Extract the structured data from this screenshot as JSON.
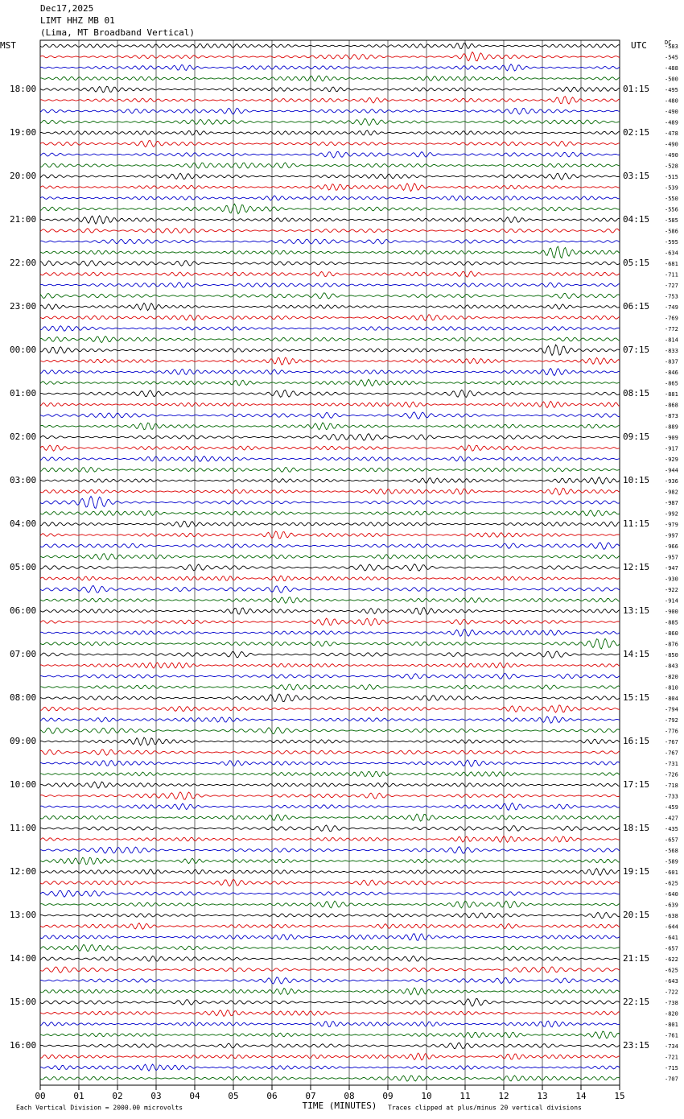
{
  "header": {
    "date": "Dec17,2025",
    "station": "LIMT HHZ MB 01",
    "location": "(Lima, MT Broadband Vertical)"
  },
  "left_axis": {
    "title": "MST",
    "labels": [
      "18:00",
      "19:00",
      "20:00",
      "21:00",
      "22:00",
      "23:00",
      "00:00",
      "01:00",
      "02:00",
      "03:00",
      "04:00",
      "05:00",
      "06:00",
      "07:00",
      "08:00",
      "09:00",
      "10:00",
      "11:00",
      "12:00",
      "13:00",
      "14:00",
      "15:00",
      "16:00"
    ]
  },
  "right_axis": {
    "title": "UTC",
    "labels": [
      "01:15",
      "02:15",
      "03:15",
      "04:15",
      "05:15",
      "06:15",
      "07:15",
      "08:15",
      "09:15",
      "10:15",
      "11:15",
      "12:15",
      "13:15",
      "14:15",
      "15:15",
      "16:15",
      "17:15",
      "18:15",
      "19:15",
      "20:15",
      "21:15",
      "22:15",
      "23:15"
    ]
  },
  "dc": {
    "title": "DC",
    "offsets": [
      "-583",
      "-545",
      "-488",
      "-500",
      "-495",
      "-480",
      "-490",
      "-489",
      "-478",
      "-490",
      "-490",
      "-528",
      "-515",
      "-539",
      "-550",
      "-556",
      "-585",
      "-586",
      "-595",
      "-634",
      "-681",
      "-711",
      "-727",
      "-753",
      "-749",
      "-769",
      "-772",
      "-814",
      "-833",
      "-837",
      "-846",
      "-865",
      "-881",
      "-868",
      "-873",
      "-889",
      "-909",
      "-917",
      "-929",
      "-944",
      "-936",
      "-982",
      "-987",
      "-992",
      "-979",
      "-997",
      "-966",
      "-957",
      "-947",
      "-930",
      "-922",
      "-914",
      "-900",
      "-885",
      "-860",
      "-876",
      "-850",
      "-843",
      "-820",
      "-810",
      "-804",
      "-794",
      "-792",
      "-776",
      "-767",
      "-767",
      "-731",
      "-726",
      "-718",
      "-733",
      "-459",
      "-427",
      "-435",
      "-657",
      "-568",
      "-589",
      "-601",
      "-625",
      "-640",
      "-639",
      "-638",
      "-644",
      "-641",
      "-657",
      "-622",
      "-625",
      "-643",
      "-722",
      "-738",
      "-820",
      "-801",
      "-761",
      "-734",
      "-721",
      "-715",
      "-707"
    ]
  },
  "x_axis": {
    "title": "TIME (MINUTES)",
    "ticks": [
      "00",
      "01",
      "02",
      "03",
      "04",
      "05",
      "06",
      "07",
      "08",
      "09",
      "10",
      "11",
      "12",
      "13",
      "14",
      "15"
    ]
  },
  "footer": {
    "scale": "Each Vertical Division = 2000.00 microvolts",
    "clip": "Traces clipped at plus/minus 20 vertical divisions"
  }
}
